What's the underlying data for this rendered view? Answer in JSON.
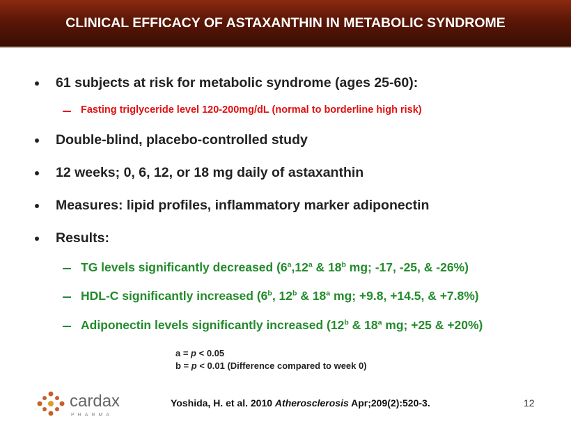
{
  "header": {
    "title": "CLINICAL EFFICACY OF ASTAXANTHIN IN METABOLIC SYNDROME"
  },
  "bullets": [
    "61 subjects at risk for metabolic syndrome (ages 25-60):",
    "Double-blind, placebo-controlled study",
    "12 weeks; 0, 6, 12, or 18 mg daily of astaxanthin",
    "Measures:  lipid profiles, inflammatory marker adiponectin",
    "Results:"
  ],
  "subjects_detail": "Fasting triglyceride level 120-200mg/dL (normal to borderline high risk)",
  "results": [
    [
      "TG levels significantly decreased (6",
      "a",
      ",12",
      "a",
      " & 18",
      "b",
      " mg; -17, -25, & -26%)"
    ],
    [
      "HDL-C significantly increased (6",
      "b",
      ", 12",
      "b",
      " & 18",
      "a",
      " mg; +9.8, +14.5, & +7.8%)"
    ],
    [
      "Adiponectin levels significantly increased (12",
      "b",
      " & 18",
      "a",
      " mg; +25 & +20%)"
    ]
  ],
  "footnotes": [
    [
      "a = ",
      "p",
      " < 0.05"
    ],
    [
      "b = ",
      "p",
      " < 0.01 (Difference compared to week 0)"
    ]
  ],
  "citation": [
    "Yoshida, H. et al. 2010 ",
    "Atherosclerosis",
    " Apr;209(2):520-3."
  ],
  "page_number": "12",
  "logo": {
    "name": "cardax",
    "tagline": "PHARMA"
  }
}
